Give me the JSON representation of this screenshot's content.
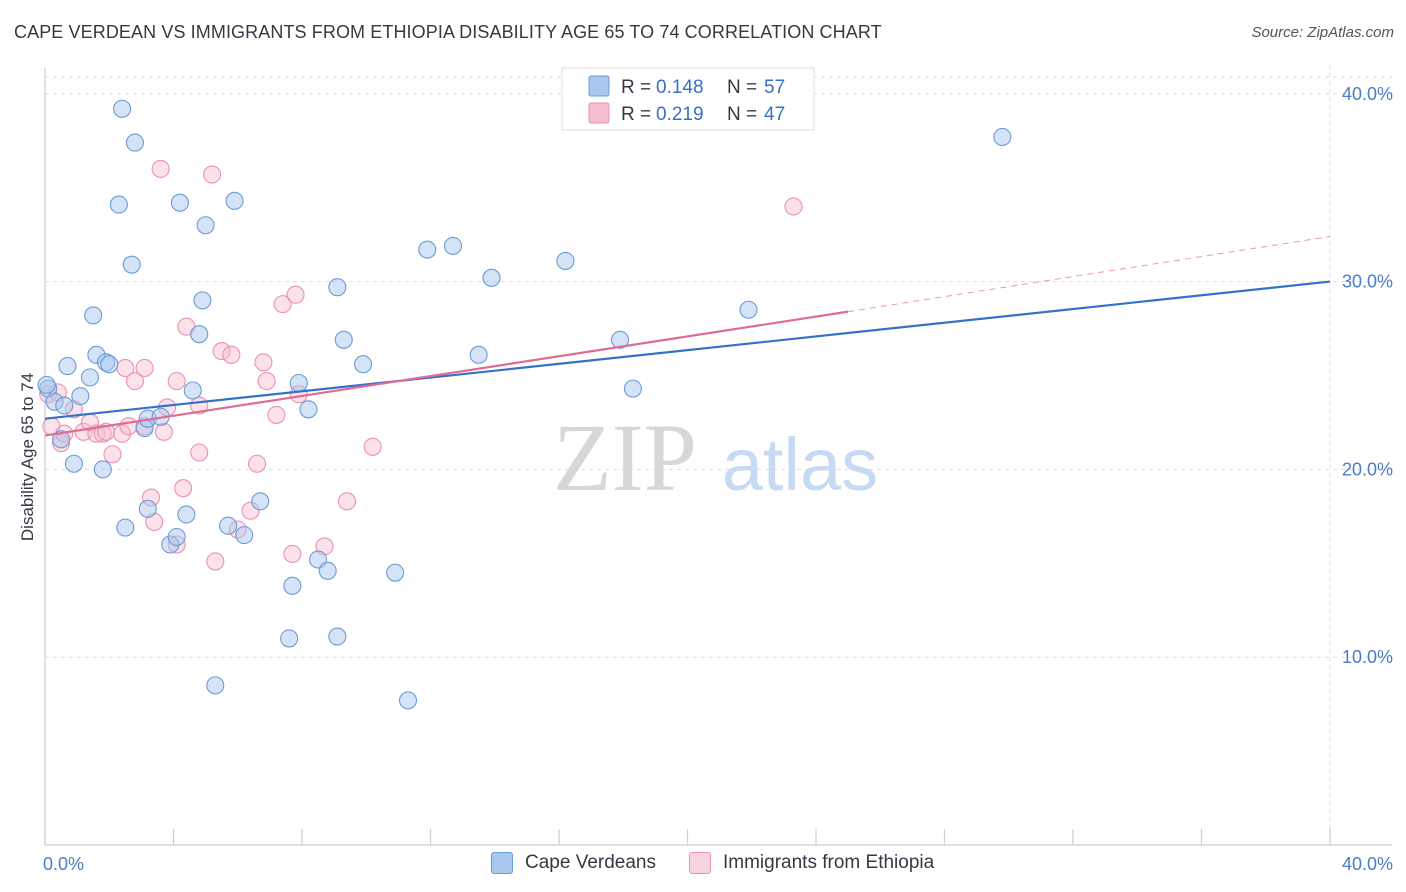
{
  "header": {
    "title": "CAPE VERDEAN VS IMMIGRANTS FROM ETHIOPIA DISABILITY AGE 65 TO 74 CORRELATION CHART",
    "source": "Source: ZipAtlas.com"
  },
  "watermark": {
    "zip": "ZIP",
    "atlas": "atlas"
  },
  "legend_top": {
    "rows": [
      {
        "r_label": "R =",
        "r_value": "0.148",
        "n_label": "N =",
        "n_value": "57"
      },
      {
        "r_label": "R =",
        "r_value": "0.219",
        "n_label": "N =",
        "n_value": "47"
      }
    ]
  },
  "legend_bottom": {
    "items": [
      {
        "label": "Cape Verdeans"
      },
      {
        "label": "Immigrants from Ethiopia"
      }
    ]
  },
  "colors": {
    "blue_fill": "#aac8ee",
    "blue_stroke": "#6b9bd8",
    "blue_line": "#3471c9",
    "pink_fill": "#f6bcd0",
    "pink_stroke": "#e992b0",
    "pink_line": "#e06b96",
    "tick_text": "#4a7cc7",
    "grid": "#dddddd"
  },
  "chart_data": {
    "type": "scatter",
    "title": "CAPE VERDEAN VS IMMIGRANTS FROM ETHIOPIA DISABILITY AGE 65 TO 74 CORRELATION CHART",
    "xlabel": "",
    "ylabel": "Disability Age 65 to 74",
    "xlim": [
      0,
      40
    ],
    "ylim": [
      0,
      41
    ],
    "x_tick_labels": [
      "0.0%",
      "40.0%"
    ],
    "y_ticks": [
      10,
      20,
      30,
      40
    ],
    "y_tick_labels": [
      "10.0%",
      "20.0%",
      "30.0%",
      "40.0%"
    ],
    "grid": true,
    "legend_position": "top-center",
    "series": [
      {
        "name": "Cape Verdeans",
        "r": 0.148,
        "n": 57,
        "trend": {
          "x0": 0,
          "y0": 22.7,
          "x1": 40,
          "y1": 30.0
        },
        "points": [
          [
            0.1,
            24.3
          ],
          [
            0.3,
            23.6
          ],
          [
            0.5,
            21.6
          ],
          [
            0.6,
            23.4
          ],
          [
            0.7,
            25.5
          ],
          [
            0.9,
            20.3
          ],
          [
            1.1,
            23.9
          ],
          [
            1.4,
            24.9
          ],
          [
            1.5,
            28.2
          ],
          [
            1.6,
            26.1
          ],
          [
            1.8,
            20.0
          ],
          [
            1.9,
            25.7
          ],
          [
            2.0,
            25.6
          ],
          [
            2.3,
            34.1
          ],
          [
            2.4,
            39.2
          ],
          [
            2.5,
            16.9
          ],
          [
            2.7,
            30.9
          ],
          [
            2.8,
            37.4
          ],
          [
            3.1,
            22.2
          ],
          [
            3.2,
            17.9
          ],
          [
            3.2,
            22.7
          ],
          [
            3.6,
            22.8
          ],
          [
            3.9,
            16.0
          ],
          [
            4.1,
            16.4
          ],
          [
            4.2,
            34.2
          ],
          [
            4.4,
            17.6
          ],
          [
            4.6,
            24.2
          ],
          [
            4.8,
            27.2
          ],
          [
            4.9,
            29.0
          ],
          [
            5.0,
            33.0
          ],
          [
            5.3,
            8.5
          ],
          [
            5.7,
            17.0
          ],
          [
            5.9,
            34.3
          ],
          [
            6.2,
            16.5
          ],
          [
            6.7,
            18.3
          ],
          [
            7.6,
            11.0
          ],
          [
            7.7,
            13.8
          ],
          [
            7.9,
            24.6
          ],
          [
            8.2,
            23.2
          ],
          [
            8.5,
            15.2
          ],
          [
            8.8,
            14.6
          ],
          [
            9.1,
            29.7
          ],
          [
            9.1,
            11.1
          ],
          [
            9.3,
            26.9
          ],
          [
            9.9,
            25.6
          ],
          [
            10.9,
            14.5
          ],
          [
            11.3,
            7.7
          ],
          [
            11.9,
            31.7
          ],
          [
            12.7,
            31.9
          ],
          [
            13.5,
            26.1
          ],
          [
            13.9,
            30.2
          ],
          [
            16.2,
            31.1
          ],
          [
            17.9,
            26.9
          ],
          [
            18.3,
            24.3
          ],
          [
            21.9,
            28.5
          ],
          [
            29.8,
            37.7
          ],
          [
            0.05,
            24.5
          ]
        ]
      },
      {
        "name": "Immigrants from Ethiopia",
        "r": 0.219,
        "n": 47,
        "trend_solid": {
          "x0": 0,
          "y0": 21.8,
          "x1": 25,
          "y1": 28.4
        },
        "trend_dashed": {
          "x0": 25,
          "y0": 28.4,
          "x1": 40,
          "y1": 32.4
        },
        "points": [
          [
            0.1,
            24.0
          ],
          [
            0.2,
            22.3
          ],
          [
            0.4,
            24.1
          ],
          [
            0.5,
            21.4
          ],
          [
            0.6,
            21.9
          ],
          [
            0.9,
            23.2
          ],
          [
            1.2,
            22.0
          ],
          [
            1.4,
            22.5
          ],
          [
            1.6,
            21.9
          ],
          [
            1.8,
            21.9
          ],
          [
            1.9,
            22.0
          ],
          [
            2.1,
            20.8
          ],
          [
            2.4,
            21.9
          ],
          [
            2.5,
            25.4
          ],
          [
            2.6,
            22.3
          ],
          [
            2.8,
            24.7
          ],
          [
            3.1,
            22.3
          ],
          [
            3.1,
            25.4
          ],
          [
            3.3,
            18.5
          ],
          [
            3.4,
            17.2
          ],
          [
            3.6,
            36.0
          ],
          [
            3.7,
            22.0
          ],
          [
            3.8,
            23.3
          ],
          [
            4.1,
            16.0
          ],
          [
            4.1,
            24.7
          ],
          [
            4.3,
            19.0
          ],
          [
            4.4,
            27.6
          ],
          [
            4.8,
            23.4
          ],
          [
            4.8,
            20.9
          ],
          [
            5.2,
            35.7
          ],
          [
            5.3,
            15.1
          ],
          [
            5.5,
            26.3
          ],
          [
            5.8,
            26.1
          ],
          [
            6.0,
            16.8
          ],
          [
            6.4,
            17.8
          ],
          [
            6.6,
            20.3
          ],
          [
            6.8,
            25.7
          ],
          [
            6.9,
            24.7
          ],
          [
            7.2,
            22.9
          ],
          [
            7.4,
            28.8
          ],
          [
            7.7,
            15.5
          ],
          [
            7.8,
            29.3
          ],
          [
            7.9,
            24.0
          ],
          [
            8.7,
            15.9
          ],
          [
            9.4,
            18.3
          ],
          [
            10.2,
            21.2
          ],
          [
            23.3,
            34.0
          ]
        ]
      }
    ]
  }
}
